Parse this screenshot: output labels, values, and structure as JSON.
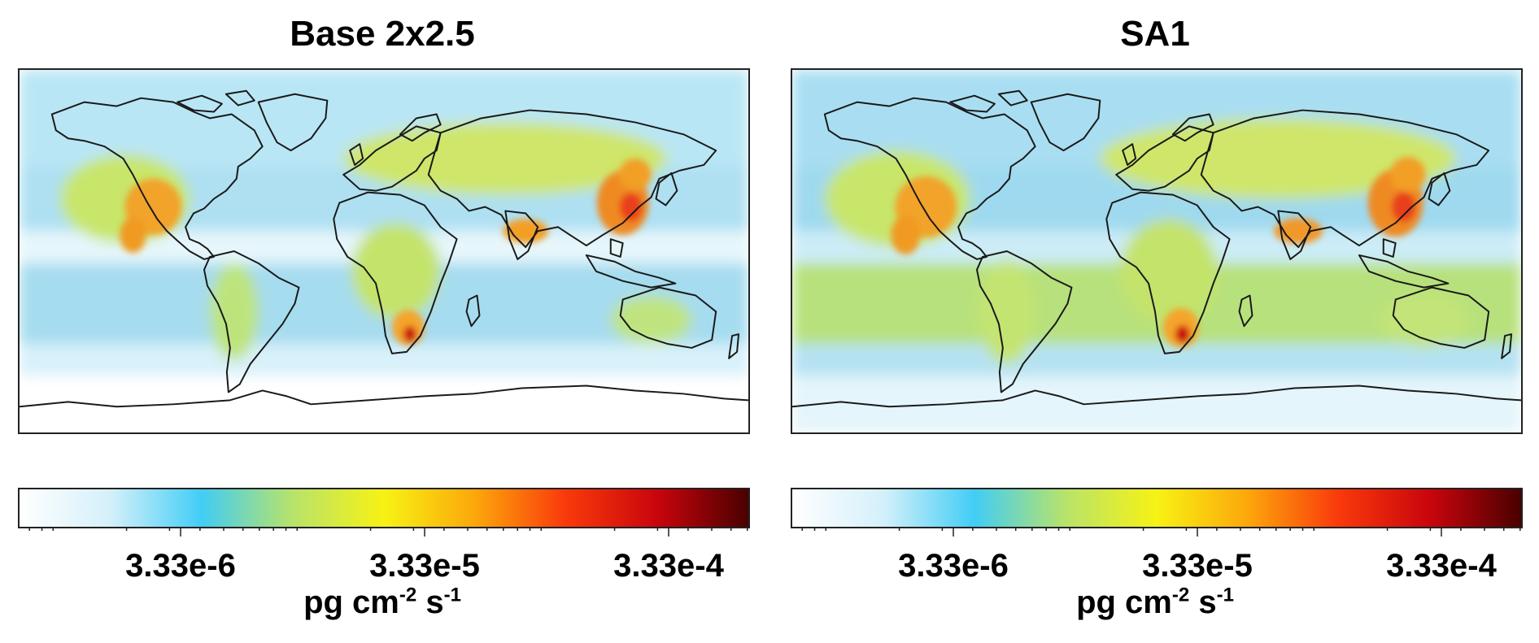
{
  "panels": [
    {
      "title": "Base 2x2.5",
      "colorbar": {
        "tick_labels": [
          "3.33e-6",
          "3.33e-5",
          "3.33e-4"
        ],
        "units_base": "pg cm",
        "units_exp1": "-2",
        "units_mid": " s",
        "units_exp2": "-1"
      }
    },
    {
      "title": "SA1",
      "colorbar": {
        "tick_labels": [
          "3.33e-6",
          "3.33e-5",
          "3.33e-4"
        ],
        "units_base": "pg cm",
        "units_exp1": "-2",
        "units_mid": " s",
        "units_exp2": "-1"
      }
    }
  ],
  "colorbar_colors": [
    "#ffffff",
    "#d4f0fa",
    "#41cdf5",
    "#b8e36a",
    "#f7f214",
    "#fca70b",
    "#f9390b",
    "#c9050d",
    "#4a0000"
  ],
  "colors": {
    "ocean_low": "#ffffff",
    "ocean_mid": "#9fdcf0",
    "land_mid": "#c8e66a",
    "hotspot": "#e8401c",
    "coastline": "#1a1a1a"
  }
}
